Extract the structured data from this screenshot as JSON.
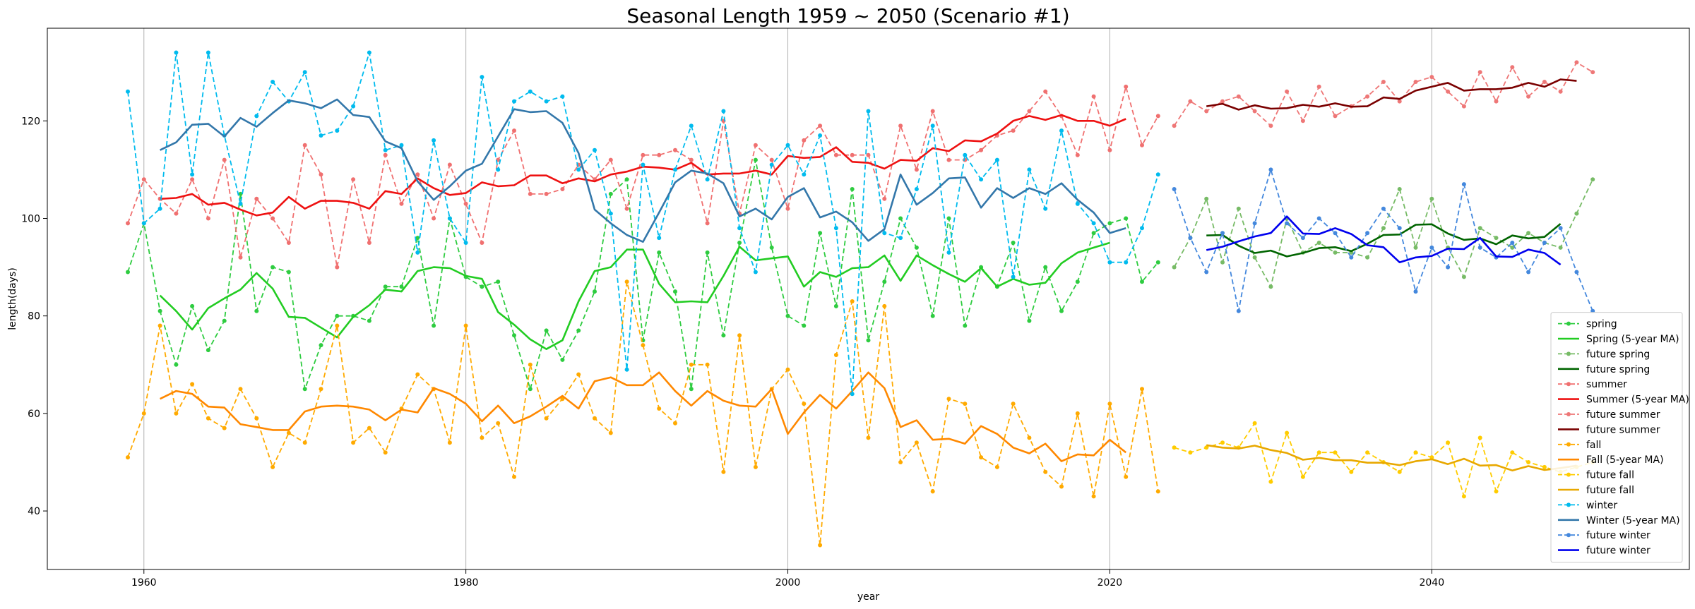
{
  "chart_data": {
    "type": "line",
    "title": "Seasonal Length 1959 ~ 2050 (Scenario #1)",
    "xlabel": "year",
    "ylabel": "length(days)",
    "xlim": [
      1954,
      2056
    ],
    "ylim": [
      28,
      139
    ],
    "xticks": [
      1960,
      1980,
      2000,
      2020,
      2040
    ],
    "yticks": [
      40,
      60,
      80,
      100,
      120
    ],
    "grid": "vertical",
    "legend_position": "bottom-right",
    "series": [
      {
        "name": "spring",
        "color": "#2ecc40",
        "style": "dashed-marker",
        "x0": 1959,
        "values": [
          89,
          99,
          81,
          70,
          82,
          73,
          79,
          105,
          81,
          90,
          89,
          65,
          74,
          80,
          80,
          79,
          86,
          86,
          96,
          78,
          100,
          88,
          86,
          87,
          76,
          65,
          77,
          71,
          77,
          85,
          105,
          108,
          75,
          93,
          85,
          65,
          93,
          76,
          95,
          112,
          94,
          80,
          78,
          97,
          82,
          106,
          75,
          87,
          100,
          94,
          80,
          100,
          78,
          90,
          86,
          95,
          79,
          90,
          81,
          87,
          97,
          99,
          100,
          87,
          91
        ]
      },
      {
        "name": "Spring (5-year MA)",
        "color": "#22cc22",
        "style": "solid",
        "x0": 1961,
        "values": [
          84.2,
          81.0,
          77.2,
          81.6,
          83.6,
          85.4,
          88.8,
          85.6,
          79.8,
          79.6,
          77.6,
          75.6,
          79.8,
          82.2,
          85.4,
          85.0,
          89.2,
          90.0,
          89.8,
          88.2,
          87.6,
          80.8,
          78.2,
          75.2,
          73.2,
          75.0,
          83.0,
          89.2,
          90.0,
          93.6,
          93.6,
          86.6,
          82.8,
          83.0,
          82.8,
          88.2,
          94.2,
          91.4,
          91.8,
          92.2,
          86.0,
          89.0,
          88.0,
          89.8,
          90.0,
          92.4,
          87.2,
          92.4,
          90.4,
          88.6,
          87.0,
          89.8,
          86.0,
          87.6,
          86.4,
          86.8,
          90.8,
          93.0,
          94.0,
          95.0
        ]
      },
      {
        "name": "future spring",
        "color": "#77bb66",
        "style": "dashed-marker",
        "x0": 2024,
        "values": [
          90,
          96,
          104,
          91,
          102,
          92,
          86,
          100,
          93,
          95,
          93,
          93,
          92,
          98,
          106,
          94,
          104,
          94,
          88,
          98,
          96,
          94,
          97,
          95,
          94,
          101,
          108
        ]
      },
      {
        "name": "future spring",
        "color": "#006400",
        "style": "solid",
        "x0": 2026,
        "values": [
          96.5,
          96.6,
          94.4,
          92.9,
          93.4,
          92.2,
          92.9,
          93.9,
          94.1,
          93.3,
          94.8,
          96.6,
          96.7,
          98.7,
          98.8,
          96.9,
          95.6,
          95.9,
          94.7,
          96.5,
          95.9,
          96.2,
          98.9
        ]
      },
      {
        "name": "summer",
        "color": "#f07070",
        "style": "dashed-marker",
        "x0": 1959,
        "values": [
          99,
          108,
          104,
          101,
          108,
          100,
          112,
          92,
          104,
          100,
          95,
          115,
          109,
          90,
          108,
          95,
          113,
          103,
          109,
          100,
          111,
          103,
          95,
          112,
          118,
          105,
          105,
          106,
          111,
          108,
          112,
          102,
          113,
          113,
          114,
          112,
          99,
          120,
          101,
          115,
          112,
          102,
          116,
          119,
          113,
          113,
          113,
          104,
          119,
          110,
          122,
          112,
          112,
          114,
          117,
          118,
          122,
          126,
          121,
          113,
          125,
          114,
          127,
          115,
          121
        ]
      },
      {
        "name": "Summer (5-year MA)",
        "color": "#ee1111",
        "style": "solid",
        "x0": 1961,
        "values": [
          104.0,
          104.2,
          105.0,
          102.8,
          103.2,
          101.8,
          100.6,
          101.2,
          104.4,
          102.0,
          103.6,
          103.6,
          103.2,
          102.0,
          105.6,
          105.0,
          108.2,
          106.2,
          104.8,
          105.2,
          107.4,
          106.6,
          106.8,
          108.8,
          108.8,
          107.2,
          108.2,
          107.6,
          109.0,
          109.6,
          110.6,
          110.4,
          110.0,
          111.4,
          109.0,
          109.2,
          109.2,
          109.8,
          109.0,
          112.8,
          112.4,
          112.6,
          114.6,
          111.6,
          111.4,
          110.2,
          112.0,
          111.8,
          114.4,
          113.8,
          116.0,
          115.8,
          117.4,
          120.0,
          121.0,
          120.2,
          121.2,
          120.0,
          120.0,
          119.0,
          120.4
        ]
      },
      {
        "name": "future summer",
        "color": "#ee7777",
        "style": "dashed-marker",
        "x0": 2024,
        "values": [
          119,
          124,
          122,
          124,
          125,
          122,
          119,
          126,
          120,
          127,
          121,
          123,
          125,
          128,
          124,
          128,
          129,
          126,
          123,
          130,
          124,
          131,
          125,
          128,
          126,
          132,
          130
        ]
      },
      {
        "name": "future summer",
        "color": "#7a0000",
        "style": "solid",
        "x0": 2026,
        "values": [
          123.0,
          123.5,
          122.3,
          123.2,
          122.5,
          122.6,
          123.3,
          122.9,
          123.6,
          122.9,
          123.0,
          124.8,
          124.5,
          126.2,
          127.0,
          127.8,
          126.2,
          126.5,
          126.5,
          126.8,
          127.8,
          127.0,
          128.5,
          128.2
        ]
      },
      {
        "name": "fall",
        "color": "#ffaa00",
        "style": "dashed-marker",
        "x0": 1959,
        "values": [
          51,
          60,
          78,
          60,
          66,
          59,
          57,
          65,
          59,
          49,
          56,
          54,
          65,
          78,
          54,
          57,
          52,
          61,
          68,
          65,
          54,
          78,
          55,
          58,
          47,
          70,
          59,
          63,
          68,
          59,
          56,
          87,
          74,
          61,
          58,
          70,
          70,
          48,
          76,
          49,
          65,
          69,
          62,
          33,
          72,
          83,
          55,
          82,
          50,
          54,
          44,
          63,
          62,
          51,
          49,
          62,
          55,
          48,
          45,
          60,
          43,
          62,
          47,
          65,
          44
        ]
      },
      {
        "name": "Fall (5-year MA)",
        "color": "#ff8800",
        "style": "solid",
        "x0": 1961,
        "values": [
          63.0,
          64.6,
          64.0,
          61.4,
          61.2,
          57.8,
          57.2,
          56.6,
          56.6,
          60.4,
          61.4,
          61.6,
          61.4,
          60.8,
          58.6,
          60.8,
          60.2,
          65.2,
          64.0,
          62.0,
          58.4,
          61.6,
          58.0,
          59.4,
          61.4,
          63.6,
          61.0,
          66.6,
          67.4,
          65.8,
          65.8,
          68.4,
          64.6,
          61.6,
          64.6,
          62.6,
          61.6,
          61.4,
          65.0,
          55.8,
          60.2,
          63.8,
          61.0,
          64.6,
          68.4,
          65.2,
          57.2,
          58.6,
          54.6,
          54.8,
          53.8,
          57.4,
          55.8,
          53.0,
          51.8,
          53.8,
          50.2,
          51.6,
          51.4,
          54.6,
          52.0
        ]
      },
      {
        "name": "future fall",
        "color": "#ffcc00",
        "style": "dashed-marker",
        "x0": 2024,
        "values": [
          53,
          52,
          53,
          54,
          53,
          58,
          46,
          56,
          47,
          52,
          52,
          48,
          52,
          50,
          48,
          52,
          51,
          54,
          43,
          55,
          44,
          52,
          50,
          49,
          48,
          49,
          50
        ]
      },
      {
        "name": "future fall",
        "color": "#e8a800",
        "style": "solid",
        "x0": 2026,
        "values": [
          53.5,
          53.0,
          52.8,
          53.4,
          52.5,
          51.9,
          50.5,
          50.9,
          50.4,
          50.4,
          49.9,
          49.9,
          49.4,
          50.2,
          50.6,
          49.6,
          50.7,
          49.3,
          49.4,
          48.3,
          49.2,
          48.4,
          48.8,
          49.3
        ]
      },
      {
        "name": "winter",
        "color": "#00bbee",
        "style": "dashed-marker",
        "x0": 1959,
        "values": [
          126,
          99,
          102,
          134,
          109,
          134,
          117,
          103,
          121,
          128,
          124,
          130,
          117,
          118,
          123,
          134,
          114,
          115,
          93,
          116,
          100,
          95,
          129,
          110,
          124,
          126,
          124,
          125,
          110,
          114,
          101,
          69,
          111,
          96,
          110,
          119,
          108,
          122,
          98,
          89,
          111,
          115,
          109,
          117,
          98,
          64,
          122,
          97,
          96,
          106,
          119,
          93,
          113,
          108,
          112,
          88,
          110,
          102,
          118,
          103,
          99,
          91,
          91,
          98,
          109
        ]
      },
      {
        "name": "Winter (5-year MA)",
        "color": "#3377aa",
        "style": "solid",
        "x0": 1961,
        "values": [
          114.0,
          115.6,
          119.2,
          119.4,
          116.8,
          120.6,
          118.8,
          121.6,
          124.2,
          123.6,
          122.6,
          124.4,
          121.2,
          120.8,
          115.8,
          114.4,
          107.6,
          103.8,
          106.6,
          109.8,
          111.2,
          116.8,
          122.4,
          121.8,
          122.0,
          119.6,
          113.4,
          101.8,
          99.0,
          96.6,
          95.2,
          101.2,
          107.4,
          109.8,
          109.2,
          107.2,
          100.4,
          102.0,
          99.8,
          104.4,
          106.2,
          100.2,
          101.4,
          99.2,
          95.4,
          97.8,
          109.0,
          102.8,
          105.2,
          108.2,
          108.4,
          102.2,
          106.2,
          104.2,
          106.2,
          105.0,
          107.2,
          103.8,
          101.2,
          97.0,
          98.0
        ]
      },
      {
        "name": "future winter",
        "color": "#4488dd",
        "style": "dashed-marker",
        "x0": 2024,
        "values": [
          106,
          96,
          89,
          97,
          81,
          99,
          110,
          99,
          96,
          100,
          97,
          92,
          97,
          102,
          98,
          85,
          94,
          90,
          107,
          94,
          92,
          95,
          89,
          95,
          98,
          89,
          81
        ]
      },
      {
        "name": "future winter",
        "color": "#0000ee",
        "style": "solid",
        "x0": 2026,
        "values": [
          93.5,
          94.2,
          95.3,
          96.3,
          97.0,
          100.4,
          96.9,
          96.8,
          98.0,
          96.8,
          94.5,
          94.1,
          91.0,
          92.0,
          92.3,
          93.8,
          93.7,
          96.0,
          92.2,
          92.1,
          93.6,
          92.9,
          90.5
        ]
      }
    ]
  }
}
